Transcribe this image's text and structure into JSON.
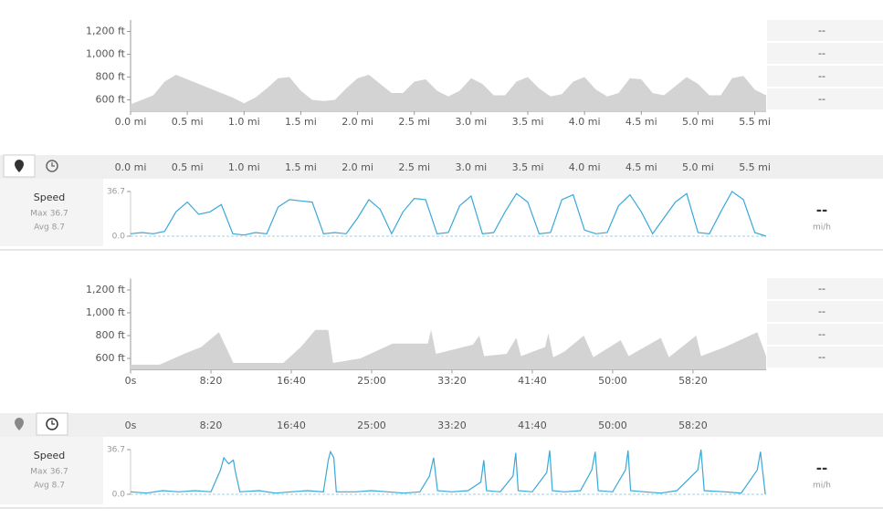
{
  "chart_data": [
    {
      "type": "area",
      "color": "#d3d3d3",
      "x": [
        0.0,
        0.1,
        0.2,
        0.3,
        0.4,
        0.5,
        0.6,
        0.7,
        0.8,
        0.9,
        1.0,
        1.1,
        1.2,
        1.3,
        1.4,
        1.5,
        1.6,
        1.7,
        1.8,
        1.9,
        2.0,
        2.1,
        2.2,
        2.3,
        2.4,
        2.5,
        2.6,
        2.7,
        2.8,
        2.9,
        3.0,
        3.1,
        3.2,
        3.3,
        3.4,
        3.5,
        3.6,
        3.7,
        3.8,
        3.9,
        4.0,
        4.1,
        4.2,
        4.3,
        4.4,
        4.5,
        4.6,
        4.7,
        4.8,
        4.9,
        5.0,
        5.1,
        5.2,
        5.3,
        5.4,
        5.5,
        5.6
      ],
      "values": [
        560,
        600,
        640,
        760,
        820,
        780,
        740,
        700,
        660,
        620,
        570,
        620,
        700,
        790,
        800,
        680,
        600,
        590,
        600,
        700,
        790,
        820,
        740,
        660,
        660,
        760,
        780,
        680,
        630,
        680,
        790,
        740,
        640,
        640,
        760,
        800,
        700,
        630,
        650,
        760,
        800,
        690,
        630,
        660,
        790,
        780,
        660,
        640,
        720,
        800,
        740,
        640,
        640,
        790,
        810,
        690,
        640
      ],
      "xlim": [
        0,
        5.6
      ],
      "ylim": [
        500,
        1300
      ],
      "xticks": [
        {
          "value": 0,
          "label": "0.0 mi"
        },
        {
          "value": 0.5,
          "label": "0.5 mi"
        },
        {
          "value": 1,
          "label": "1.0 mi"
        },
        {
          "value": 1.5,
          "label": "1.5 mi"
        },
        {
          "value": 2,
          "label": "2.0 mi"
        },
        {
          "value": 2.5,
          "label": "2.5 mi"
        },
        {
          "value": 3,
          "label": "3.0 mi"
        },
        {
          "value": 3.5,
          "label": "3.5 mi"
        },
        {
          "value": 4,
          "label": "4.0 mi"
        },
        {
          "value": 4.5,
          "label": "4.5 mi"
        },
        {
          "value": 5,
          "label": "5.0 mi"
        },
        {
          "value": 5.5,
          "label": "5.5 mi"
        }
      ],
      "yticks": [
        {
          "value": 600,
          "label": "600 ft"
        },
        {
          "value": 800,
          "label": "800 ft"
        },
        {
          "value": 1000,
          "label": "1,000 ft"
        },
        {
          "value": 1200,
          "label": "1,200 ft"
        }
      ]
    },
    {
      "type": "line",
      "color": "#3aa8d8",
      "x": [
        0.0,
        0.1,
        0.2,
        0.3,
        0.4,
        0.5,
        0.6,
        0.7,
        0.8,
        0.9,
        1.0,
        1.1,
        1.2,
        1.3,
        1.4,
        1.5,
        1.6,
        1.7,
        1.8,
        1.9,
        2.0,
        2.1,
        2.2,
        2.3,
        2.4,
        2.5,
        2.6,
        2.7,
        2.8,
        2.9,
        3.0,
        3.1,
        3.2,
        3.3,
        3.4,
        3.5,
        3.6,
        3.7,
        3.8,
        3.9,
        4.0,
        4.1,
        4.2,
        4.3,
        4.4,
        4.5,
        4.6,
        4.7,
        4.8,
        4.9,
        5.0,
        5.1,
        5.2,
        5.3,
        5.4,
        5.5,
        5.6
      ],
      "values": [
        2,
        3,
        2,
        4,
        20,
        28,
        18,
        20,
        26,
        2,
        1,
        3,
        2,
        24,
        30,
        29,
        28,
        2,
        3,
        2,
        15,
        30,
        22,
        2,
        20,
        31,
        30,
        2,
        3,
        25,
        33,
        2,
        3,
        20,
        35,
        28,
        2,
        3,
        30,
        34,
        5,
        2,
        3,
        25,
        34,
        20,
        2,
        15,
        28,
        35,
        3,
        2,
        20,
        36.7,
        30,
        3,
        0
      ],
      "xlim": [
        0,
        5.6
      ],
      "ylim": [
        0,
        36.7
      ],
      "xticks": [
        {
          "value": 0,
          "label": "0.0 mi"
        },
        {
          "value": 0.5,
          "label": "0.5 mi"
        },
        {
          "value": 1,
          "label": "1.0 mi"
        },
        {
          "value": 1.5,
          "label": "1.5 mi"
        },
        {
          "value": 2,
          "label": "2.0 mi"
        },
        {
          "value": 2.5,
          "label": "2.5 mi"
        },
        {
          "value": 3,
          "label": "3.0 mi"
        },
        {
          "value": 3.5,
          "label": "3.5 mi"
        },
        {
          "value": 4,
          "label": "4.0 mi"
        },
        {
          "value": 4.5,
          "label": "4.5 mi"
        },
        {
          "value": 5,
          "label": "5.0 mi"
        },
        {
          "value": 5.5,
          "label": "5.5 mi"
        }
      ],
      "yticks": [
        {
          "value": 0,
          "label": "0.0"
        },
        36.7
      ]
    },
    {
      "type": "area",
      "color": "#d3d3d3",
      "x": [
        0,
        180,
        350,
        440,
        550,
        640,
        950,
        1060,
        1150,
        1230,
        1260,
        1430,
        1630,
        1850,
        1870,
        1900,
        2130,
        2170,
        2200,
        2340,
        2400,
        2430,
        2580,
        2600,
        2630,
        2700,
        2820,
        2880,
        3050,
        3100,
        3300,
        3350,
        3520,
        3550,
        3700,
        3900,
        3955
      ],
      "values": [
        545,
        545,
        650,
        700,
        830,
        560,
        560,
        700,
        850,
        850,
        560,
        600,
        730,
        730,
        850,
        640,
        720,
        800,
        620,
        640,
        780,
        620,
        700,
        820,
        610,
        660,
        800,
        610,
        760,
        620,
        780,
        610,
        800,
        620,
        700,
        830,
        620
      ],
      "xlim": [
        0,
        3955
      ],
      "ylim": [
        500,
        1300
      ],
      "xticks": [
        {
          "value": 0,
          "label": "0s"
        },
        {
          "value": 500,
          "label": "8:20"
        },
        {
          "value": 1000,
          "label": "16:40"
        },
        {
          "value": 1500,
          "label": "25:00"
        },
        {
          "value": 2000,
          "label": "33:20"
        },
        {
          "value": 2500,
          "label": "41:40"
        },
        {
          "value": 3000,
          "label": "50:00"
        },
        {
          "value": 3500,
          "label": "58:20"
        }
      ],
      "yticks": [
        {
          "value": 600,
          "label": "600 ft"
        },
        {
          "value": 800,
          "label": "800 ft"
        },
        {
          "value": 1000,
          "label": "1,000 ft"
        },
        {
          "value": 1200,
          "label": "1,200 ft"
        }
      ]
    },
    {
      "type": "line",
      "color": "#3aa8d8",
      "x": [
        0,
        100,
        200,
        300,
        400,
        500,
        560,
        580,
        610,
        640,
        653,
        680,
        800,
        900,
        1000,
        1100,
        1200,
        1230,
        1244,
        1265,
        1280,
        1400,
        1500,
        1600,
        1700,
        1800,
        1860,
        1886,
        1910,
        2000,
        2100,
        2180,
        2198,
        2215,
        2300,
        2380,
        2397,
        2412,
        2500,
        2590,
        2608,
        2625,
        2700,
        2800,
        2870,
        2891,
        2910,
        3000,
        3080,
        3096,
        3112,
        3200,
        3300,
        3400,
        3530,
        3550,
        3570,
        3700,
        3800,
        3900,
        3920,
        3950
      ],
      "values": [
        2,
        1,
        3,
        2,
        3,
        2,
        20,
        30,
        25,
        28,
        18,
        2,
        3,
        1,
        2,
        3,
        2,
        28,
        35,
        30,
        2,
        2,
        3,
        2,
        1,
        2,
        15,
        30,
        3,
        2,
        3,
        10,
        28,
        3,
        2,
        15,
        34,
        3,
        2,
        18,
        36,
        3,
        2,
        3,
        20,
        35,
        3,
        2,
        20,
        36,
        3,
        2,
        1,
        3,
        20,
        36.7,
        3,
        2,
        1,
        20,
        35,
        0
      ],
      "xlim": [
        0,
        3955
      ],
      "ylim": [
        0,
        36.7
      ],
      "xticks": [
        {
          "value": 0,
          "label": "0s"
        },
        {
          "value": 500,
          "label": "8:20"
        },
        {
          "value": 1000,
          "label": "16:40"
        },
        {
          "value": 1500,
          "label": "25:00"
        },
        {
          "value": 2000,
          "label": "33:20"
        },
        {
          "value": 2500,
          "label": "41:40"
        },
        {
          "value": 3000,
          "label": "50:00"
        },
        {
          "value": 3500,
          "label": "58:20"
        }
      ],
      "yticks": [
        {
          "value": 0,
          "label": "0.0"
        },
        36.7
      ]
    }
  ],
  "sections": [
    {
      "stats": [
        "--",
        "--",
        "--",
        "--"
      ],
      "speed": {
        "label": "Speed",
        "max": "Max 36.7",
        "avg": "Avg 8.7",
        "value": "--",
        "unit": "mi/h"
      }
    },
    {
      "stats": [
        "--",
        "--",
        "--",
        "--"
      ],
      "speed": {
        "label": "Speed",
        "max": "Max 36.7",
        "avg": "Avg 8.7",
        "value": "--",
        "unit": "mi/h"
      }
    }
  ]
}
